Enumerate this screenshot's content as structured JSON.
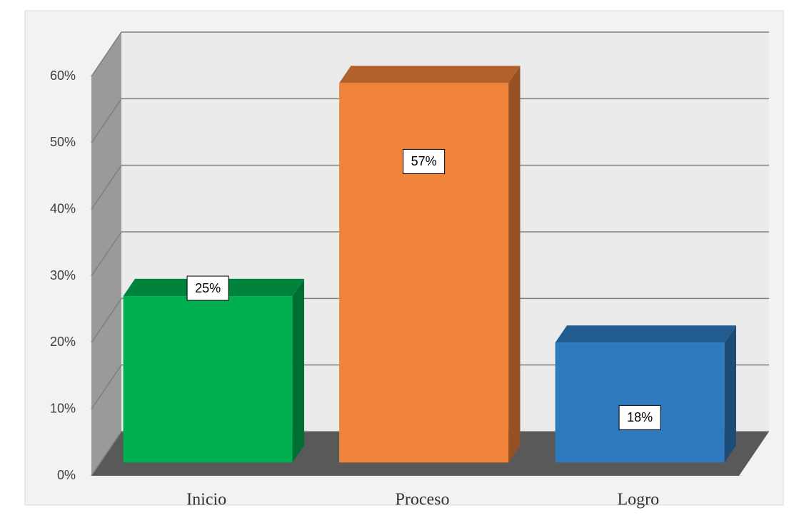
{
  "chart_data": {
    "type": "bar3d",
    "categories": [
      "Inicio",
      "Proceso",
      "Logro"
    ],
    "values": [
      25,
      57,
      18
    ],
    "value_labels": [
      "25%",
      "57%",
      "18%"
    ],
    "colors": [
      "#00b050",
      "#f0833a",
      "#2f7abf"
    ],
    "ylim": [
      0,
      60
    ],
    "yticks": [
      {
        "value": 0,
        "label": "0%"
      },
      {
        "value": 10,
        "label": "10%"
      },
      {
        "value": 20,
        "label": "20%"
      },
      {
        "value": 30,
        "label": "30%"
      },
      {
        "value": 40,
        "label": "40%"
      },
      {
        "value": 50,
        "label": "50%"
      },
      {
        "value": 60,
        "label": "60%"
      }
    ],
    "grid": true
  }
}
